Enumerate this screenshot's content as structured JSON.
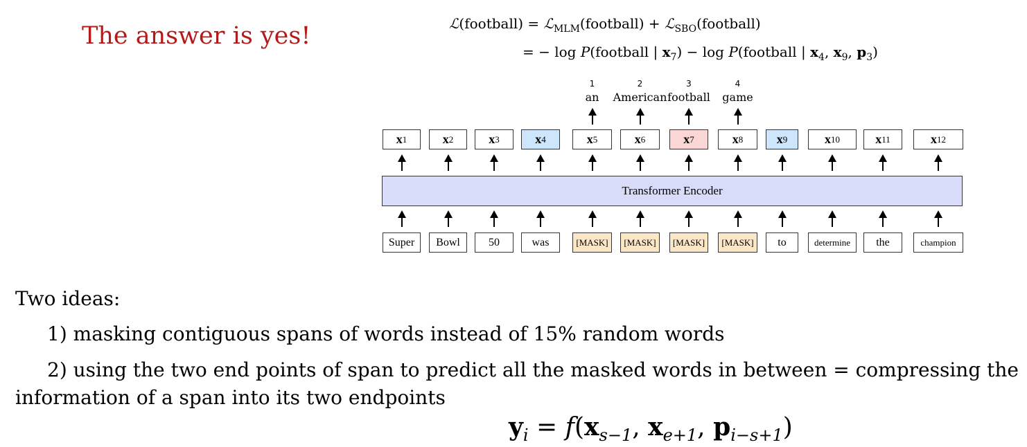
{
  "headline": "The answer is yes!",
  "equation": {
    "line1": {
      "lhs_symbol": "ℒ",
      "lhs_arg": "(football) = ",
      "t1_symbol": "ℒ",
      "t1_sub": "MLM",
      "t1_arg": "(football) + ",
      "t2_symbol": "ℒ",
      "t2_sub": "SBO",
      "t2_arg": "(football)"
    },
    "line2": {
      "p1": "= − log ",
      "P1": "P",
      "arg1a": "(football | ",
      "x7": "x",
      "x7_sub": "7",
      "arg1b": ") − log ",
      "P2": "P",
      "arg2a": "(football | ",
      "x4": "x",
      "x4_sub": "4",
      "c1": ", ",
      "x9": "x",
      "x9_sub": "9",
      "c2": ", ",
      "p3": "p",
      "p3_sub": "3",
      "close": ")"
    }
  },
  "diagram": {
    "outputs": [
      {
        "num": "1",
        "word": "an"
      },
      {
        "num": "2",
        "word": "American"
      },
      {
        "num": "3",
        "word": "football"
      },
      {
        "num": "4",
        "word": "game"
      }
    ],
    "hidden": [
      {
        "base": "x",
        "sub": "1"
      },
      {
        "base": "x",
        "sub": "2"
      },
      {
        "base": "x",
        "sub": "3"
      },
      {
        "base": "x",
        "sub": "4"
      },
      {
        "base": "x",
        "sub": "5"
      },
      {
        "base": "x",
        "sub": "6"
      },
      {
        "base": "x",
        "sub": "7"
      },
      {
        "base": "x",
        "sub": "8"
      },
      {
        "base": "x",
        "sub": "9"
      },
      {
        "base": "x",
        "sub": "10"
      },
      {
        "base": "x",
        "sub": "11"
      },
      {
        "base": "x",
        "sub": "12"
      }
    ],
    "encoder_label": "Transformer Encoder",
    "tokens": [
      "Super",
      "Bowl",
      "50",
      "was",
      "[MASK]",
      "[MASK]",
      "[MASK]",
      "[MASK]",
      "to",
      "determine",
      "the",
      "champion"
    ],
    "colors": {
      "boundary": "#cde6fb",
      "target": "#fad6d6",
      "mask": "#fbe6c6",
      "encoder": "#d9dcf8",
      "headline": "#b31b1b"
    }
  },
  "body": {
    "heading": "Two ideas:",
    "idea1": "1) masking contiguous spans of words instead of 15% random words",
    "idea2_line1": "2) using the two end points of span to predict all the masked words in between = compressing the",
    "idea2_line2": "information of a span into its two endpoints"
  },
  "formula": {
    "y": "y",
    "y_sub": "i",
    "eq": " = ",
    "f": "f",
    "open": "(",
    "x1": "x",
    "x1_sub": "s−1",
    "c1": ", ",
    "x2": "x",
    "x2_sub": "e+1",
    "c2": ", ",
    "p": "p",
    "p_sub": "i−s+1",
    "close": ")"
  }
}
